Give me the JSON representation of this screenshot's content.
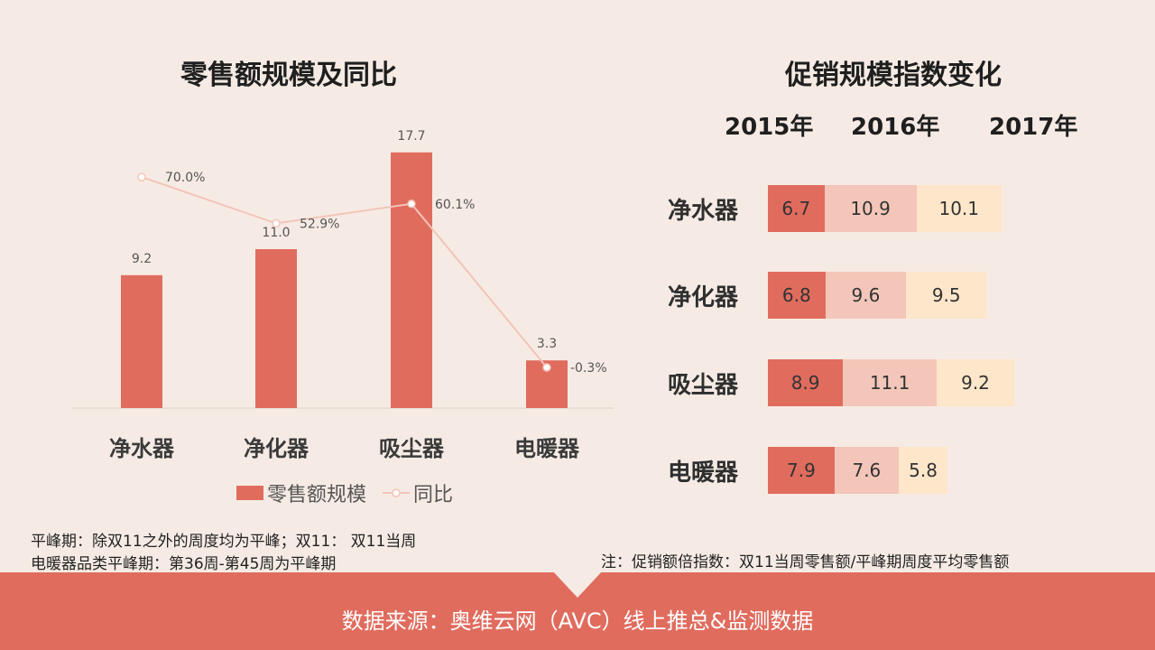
{
  "chart_data": [
    {
      "type": "bar",
      "title": "零售额规模及同比",
      "categories": [
        "净水器",
        "净化器",
        "吸尘器",
        "电暖器"
      ],
      "series": [
        {
          "name": "零售额规模",
          "type": "bar",
          "values": [
            9.2,
            11.0,
            17.7,
            3.3
          ],
          "labels": [
            "9.2",
            "11.0",
            "17.7",
            "3.3"
          ]
        },
        {
          "name": "同比",
          "type": "line",
          "values": [
            70.0,
            52.9,
            60.1,
            -0.3
          ],
          "labels": [
            "70.0%",
            "52.9%",
            "60.1%",
            "-0.3%"
          ]
        }
      ],
      "ylim": [
        0,
        20
      ],
      "y2lim": [
        -10,
        80
      ],
      "legend": "bottom"
    },
    {
      "type": "bar",
      "title": "促销规模指数变化",
      "stacked": true,
      "orientation": "horizontal",
      "categories": [
        "净水器",
        "净化器",
        "吸尘器",
        "电暖器"
      ],
      "series": [
        {
          "name": "2015年",
          "values": [
            6.7,
            6.8,
            8.9,
            7.9
          ],
          "labels": [
            "6.7",
            "6.8",
            "8.9",
            "7.9"
          ],
          "color": "#e06c5e"
        },
        {
          "name": "2016年",
          "values": [
            10.9,
            9.6,
            11.1,
            7.6
          ],
          "labels": [
            "10.9",
            "9.6",
            "11.1",
            "7.6"
          ],
          "color": "#f3c6b9"
        },
        {
          "name": "2017年",
          "values": [
            10.1,
            9.5,
            9.2,
            5.8
          ],
          "labels": [
            "10.1",
            "9.5",
            "9.2",
            "5.8"
          ],
          "color": "#fde6c9"
        }
      ]
    }
  ],
  "notes": {
    "left_line1": "平峰期：除双11之外的周度均为平峰；双11：  双11当周",
    "left_line2": "电暖器品类平峰期：第36周-第45周为平峰期",
    "right": "注：促销额倍指数：双11当周零售额/平峰期周度平均零售额"
  },
  "footer": "数据来源：奥维云网（AVC）线上推总&监测数据",
  "colors": {
    "bar": "#e06c5e",
    "line": "#f2c4b8",
    "background": "#f6ebe4"
  }
}
